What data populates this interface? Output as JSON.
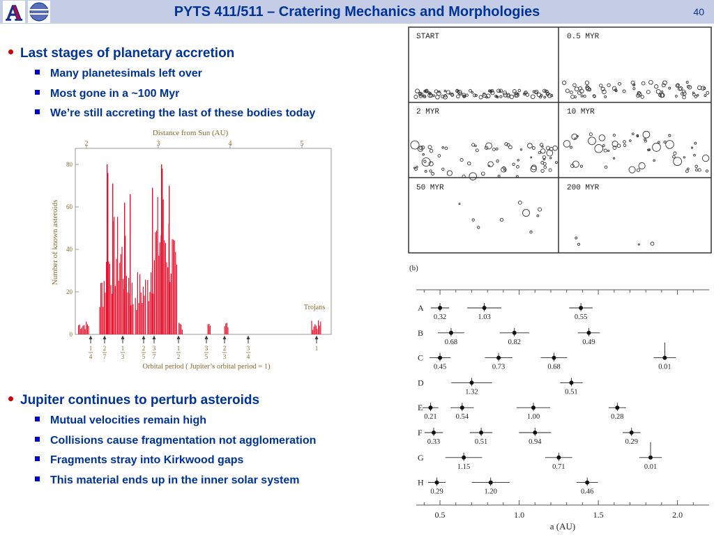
{
  "header": {
    "title": "PYTS 411/511 – Cratering Mechanics and Morphologies",
    "slide_number": "40",
    "logo_letter": "A"
  },
  "bullets": [
    {
      "text": "Last stages of planetary accretion",
      "sub": [
        "Many planetesimals left over",
        "Most gone in a ~100 Myr",
        "We’re still accreting the last of these bodies today"
      ]
    },
    {
      "text": "Jupiter continues to perturb asteroids",
      "sub": [
        "Mutual velocities remain high",
        "Collisions cause fragmentation not agglomeration",
        "Fragments stray into Kirkwood gaps",
        "This material ends up in the inner solar system"
      ]
    }
  ],
  "histogram": {
    "top_axis_label": "Distance from Sun (AU)",
    "top_ticks": [
      "2",
      "3",
      "4",
      "5"
    ],
    "y_label": "Number of known asteroids",
    "y_ticks": [
      "0",
      "20",
      "40",
      "60",
      "80"
    ],
    "x_label": "Orbital period  ( Jupiter’s orbital period  =  1)",
    "annotation": "Trojans",
    "resonances": [
      {
        "num": "1",
        "den": "4"
      },
      {
        "num": "2",
        "den": "7"
      },
      {
        "num": "1",
        "den": "3"
      },
      {
        "num": "2",
        "den": "5"
      },
      {
        "num": "3",
        "den": "7"
      },
      {
        "num": "1",
        "den": "2"
      },
      {
        "num": "3",
        "den": "5"
      },
      {
        "num": "2",
        "den": "3"
      },
      {
        "num": "3",
        "den": "4"
      },
      {
        "num": "1",
        "den": ""
      }
    ],
    "bar_color": "#e8112d"
  },
  "sim_panels": {
    "labels": [
      "START",
      "0.5 MYR",
      "2 MYR",
      "10 MYR",
      "50 MYR",
      "200 MYR"
    ]
  },
  "chart_b": {
    "panel_label": "(b)",
    "xlabel": "a (AU)",
    "x_ticks": [
      "0.5",
      "1.0",
      "1.5",
      "2.0"
    ],
    "xlim": [
      0.35,
      2.2
    ],
    "rows": [
      {
        "name": "A",
        "bodies": [
          {
            "a": 0.5,
            "m": "0.32"
          },
          {
            "a": 0.78,
            "m": "1.03"
          },
          {
            "a": 1.39,
            "m": "0.55"
          }
        ]
      },
      {
        "name": "B",
        "bodies": [
          {
            "a": 0.57,
            "m": "0.68"
          },
          {
            "a": 0.97,
            "m": "0.82"
          },
          {
            "a": 1.44,
            "m": "0.49"
          }
        ]
      },
      {
        "name": "C",
        "bodies": [
          {
            "a": 0.5,
            "m": "0.45"
          },
          {
            "a": 0.87,
            "m": "0.73"
          },
          {
            "a": 1.22,
            "m": "0.68"
          },
          {
            "a": 1.92,
            "m": "0.01"
          }
        ]
      },
      {
        "name": "D",
        "bodies": [
          {
            "a": 0.7,
            "m": "1.32"
          },
          {
            "a": 1.33,
            "m": "0.51"
          }
        ]
      },
      {
        "name": "E",
        "bodies": [
          {
            "a": 0.44,
            "m": "0.21"
          },
          {
            "a": 0.64,
            "m": "0.54"
          },
          {
            "a": 1.09,
            "m": "1.00"
          },
          {
            "a": 1.62,
            "m": "0.28"
          }
        ]
      },
      {
        "name": "F",
        "bodies": [
          {
            "a": 0.46,
            "m": "0.33"
          },
          {
            "a": 0.76,
            "m": "0.51"
          },
          {
            "a": 1.1,
            "m": "0.94"
          },
          {
            "a": 1.71,
            "m": "0.29"
          }
        ]
      },
      {
        "name": "G",
        "bodies": [
          {
            "a": 0.65,
            "m": "1.15"
          },
          {
            "a": 1.25,
            "m": "0.71"
          },
          {
            "a": 1.83,
            "m": "0.01"
          }
        ]
      },
      {
        "name": "H",
        "bodies": [
          {
            "a": 0.48,
            "m": "0.29"
          },
          {
            "a": 0.82,
            "m": "1.20"
          },
          {
            "a": 1.43,
            "m": "0.46"
          }
        ]
      }
    ]
  }
}
